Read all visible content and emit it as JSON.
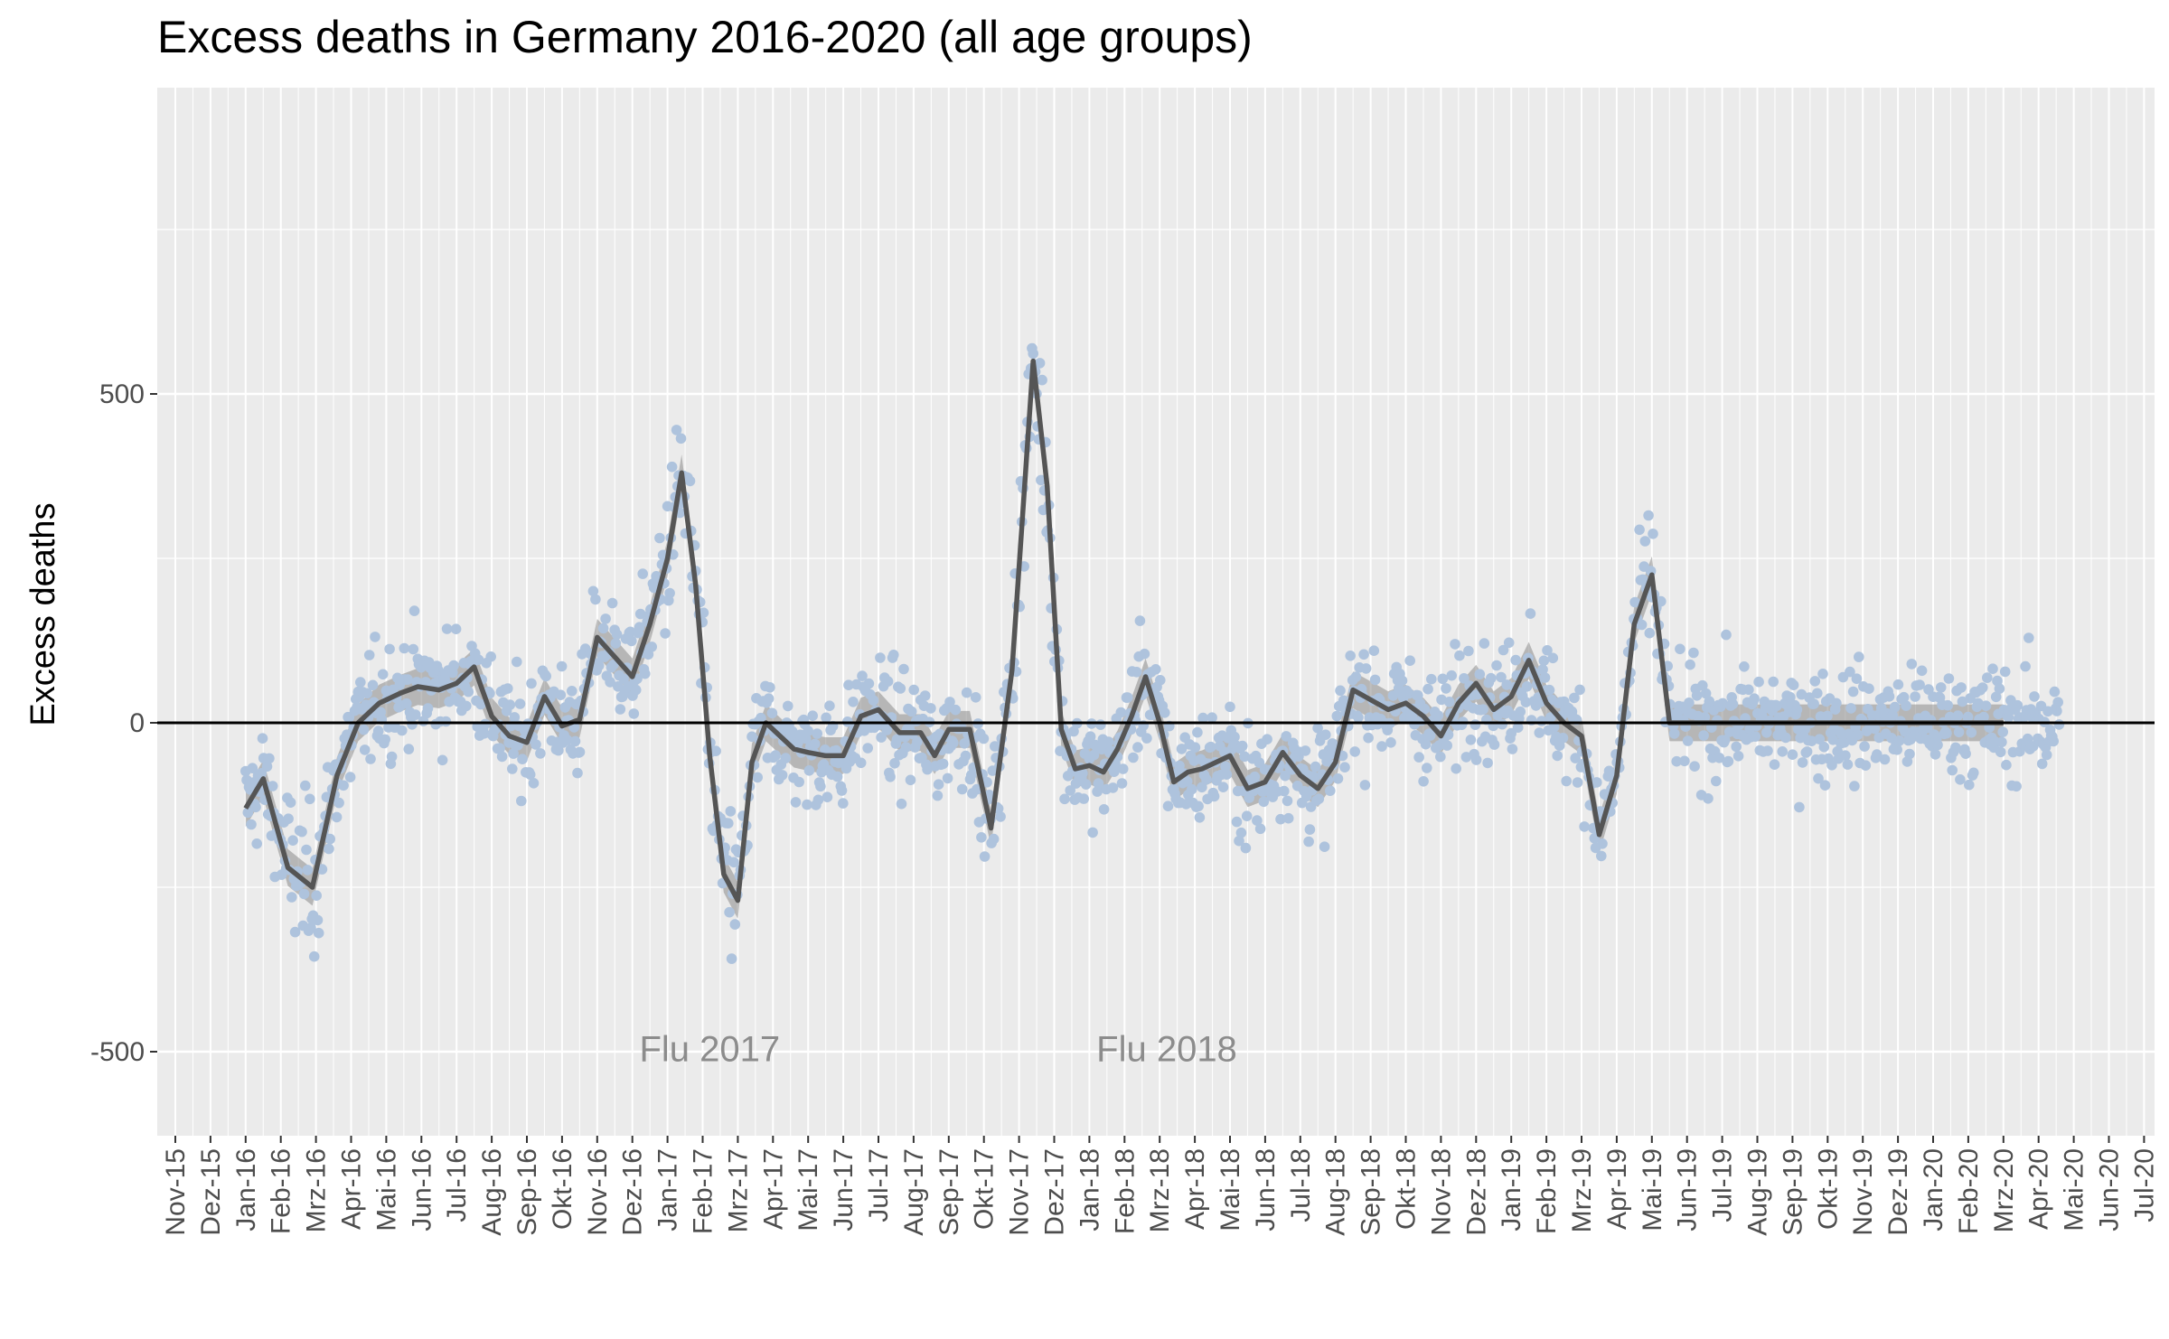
{
  "chart_data": {
    "type": "scatter",
    "title": "Excess deaths in Germany 2016-2020 (all age groups)",
    "xlabel": "",
    "ylabel": "Excess deaths",
    "ylim": [
      -630,
      930
    ],
    "y_ticks": [
      -500,
      0,
      500
    ],
    "grid": true,
    "x_tick_labels": [
      "Nov-15",
      "Dez-15",
      "Jan-16",
      "Feb-16",
      "Mrz-16",
      "Apr-16",
      "Mai-16",
      "Jun-16",
      "Jul-16",
      "Aug-16",
      "Sep-16",
      "Okt-16",
      "Nov-16",
      "Dez-16",
      "Jan-17",
      "Feb-17",
      "Mrz-17",
      "Apr-17",
      "Mai-17",
      "Jun-17",
      "Jul-17",
      "Aug-17",
      "Sep-17",
      "Okt-17",
      "Nov-17",
      "Dez-17",
      "Jan-18",
      "Feb-18",
      "Mrz-18",
      "Apr-18",
      "Mai-18",
      "Jun-18",
      "Jul-18",
      "Aug-18",
      "Sep-18",
      "Okt-18",
      "Nov-18",
      "Dez-18",
      "Jan-19",
      "Feb-19",
      "Mrz-19",
      "Apr-19",
      "Mai-19",
      "Jun-19",
      "Jul-19",
      "Aug-19",
      "Sep-19",
      "Okt-19",
      "Nov-19",
      "Dez-19",
      "Jan-20",
      "Feb-20",
      "Mrz-20",
      "Apr-20",
      "Mai-20",
      "Jun-20",
      "Jul-20"
    ],
    "annotations": [
      {
        "text": "Flu 2017",
        "x_month": 15.2,
        "y": -495
      },
      {
        "text": "Flu 2018",
        "x_month": 28.2,
        "y": -495
      }
    ],
    "reference_line": {
      "y": 0,
      "color": "#000000"
    },
    "colors": {
      "points": "#aec3dd",
      "trend": "#555555",
      "ribbon": "#8a8a8a",
      "panel": "#ebebeb",
      "grid": "#ffffff"
    },
    "series": [
      {
        "name": "",
        "kind": "trend",
        "x_month": [
          2.0,
          2.5,
          3.2,
          3.9,
          4.6,
          5.2,
          5.8,
          6.4,
          6.9,
          7.5,
          8.0,
          8.5,
          9.0,
          9.5,
          10.0,
          10.5,
          11.0,
          11.5,
          12.0,
          12.5,
          13.0,
          13.5,
          14.0,
          14.4,
          14.8,
          15.2,
          15.6,
          16.0,
          16.4,
          16.8,
          17.2,
          17.6,
          18.0,
          18.5,
          19.0,
          19.5,
          20.0,
          20.6,
          21.2,
          21.6,
          22.0,
          22.6,
          23.2,
          23.8,
          24.4,
          24.8,
          25.2,
          25.6,
          26.0,
          26.4,
          26.8,
          27.2,
          27.6,
          28.0,
          28.4,
          28.8,
          29.2,
          29.6,
          30.0,
          30.5,
          31.0,
          31.5,
          32.0,
          32.5,
          33.0,
          33.5,
          34.0,
          34.5,
          35.0,
          35.5,
          36.0,
          36.5,
          37.0,
          37.5,
          38.0,
          38.5,
          39.0,
          39.5,
          40.0,
          40.5,
          41.0,
          41.5,
          42.0,
          42.5,
          43.0,
          43.5,
          44.0,
          44.5,
          45.0,
          45.5,
          46.0,
          46.5,
          47.0,
          47.5,
          48.0,
          48.5,
          49.0,
          49.5,
          50.0,
          50.5,
          51.0,
          51.5,
          52.0,
          52.5,
          53.0,
          53.5
        ],
        "values": [
          -130,
          -85,
          -220,
          -250,
          -80,
          0,
          30,
          45,
          55,
          50,
          60,
          85,
          10,
          -20,
          -30,
          40,
          -5,
          5,
          130,
          100,
          70,
          150,
          250,
          380,
          210,
          -50,
          -230,
          -270,
          -60,
          0,
          -20,
          -40,
          -45,
          -50,
          -50,
          10,
          20,
          -15,
          -15,
          -50,
          -10,
          -10,
          -160,
          80,
          550,
          360,
          -10,
          -70,
          -65,
          -75,
          -40,
          10,
          70,
          0,
          -90,
          -75,
          -70,
          -60,
          -50,
          -100,
          -90,
          -45,
          -80,
          -100,
          -60,
          50,
          35,
          20,
          30,
          10,
          -20,
          30,
          60,
          20,
          40,
          95,
          30,
          0,
          -20,
          -170,
          -80,
          150,
          225,
          0,
          0,
          0,
          0,
          0,
          0,
          0,
          0,
          0,
          0,
          0,
          0,
          0,
          0,
          0,
          0,
          0,
          0,
          0,
          0,
          0,
          0,
          0
        ],
        "n_points": 103
      }
    ]
  }
}
